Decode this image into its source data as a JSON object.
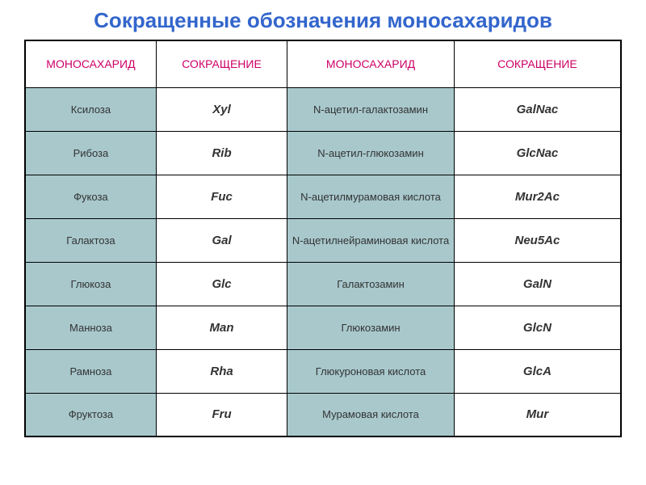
{
  "title": "Сокращенные обозначения моносахаридов",
  "headers": {
    "h1": "МОНОСАХАРИД",
    "h2": "СОКРАЩЕНИЕ",
    "h3": "МОНОСАХАРИД",
    "h4": "СОКРАЩЕНИЕ"
  },
  "rows": [
    {
      "n1": "Ксилоза",
      "a1": "Xyl",
      "n2": "N-ацетил-галактозамин",
      "a2": "GalNac"
    },
    {
      "n1": "Рибоза",
      "a1": "Rib",
      "n2": "N-ацетил-глюкозамин",
      "a2": "GlcNac"
    },
    {
      "n1": "Фукоза",
      "a1": "Fuc",
      "n2": "N-ацетилмурамовая кислота",
      "a2": "Mur2Ac"
    },
    {
      "n1": "Галактоза",
      "a1": "Gal",
      "n2": "N-ацетилнейраминовая кислота",
      "a2": "Neu5Ac"
    },
    {
      "n1": "Глюкоза",
      "a1": "Glc",
      "n2": "Галактозамин",
      "a2": "GalN"
    },
    {
      "n1": "Манноза",
      "a1": "Man",
      "n2": "Глюкозамин",
      "a2": "GlcN"
    },
    {
      "n1": "Рамноза",
      "a1": "Rha",
      "n2": "Глюкуроновая кислота",
      "a2": "GlcA"
    },
    {
      "n1": "Фруктоза",
      "a1": "Fru",
      "n2": "Мурамовая кислота",
      "a2": "Mur"
    }
  ],
  "colors": {
    "title": "#3366cc",
    "header_text": "#cc0066",
    "cell_bg": "#a8c8cc",
    "border": "#000000",
    "page_bg": "#ffffff"
  }
}
